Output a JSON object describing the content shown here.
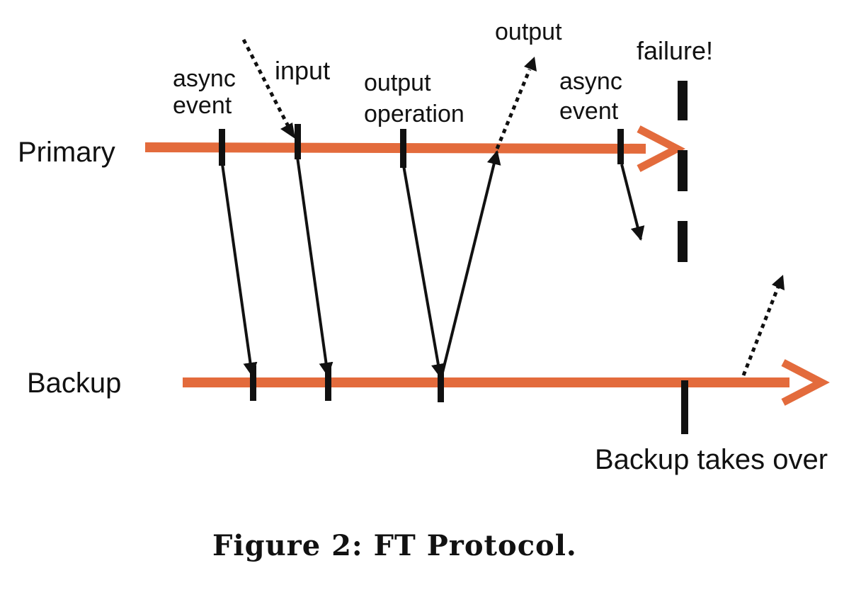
{
  "timelines": {
    "primary_label": "Primary",
    "backup_label": "Backup"
  },
  "labels": {
    "async_event_1": [
      "async",
      "event"
    ],
    "input": "input",
    "output_operation": [
      "output",
      "operation"
    ],
    "output": "output",
    "async_event_2": [
      "async",
      "event"
    ],
    "failure": "failure!",
    "backup_takes_over": "Backup takes over"
  },
  "caption": "Figure 2: FT Protocol.",
  "colors": {
    "timeline": "#E36B3C",
    "ink": "#111111"
  }
}
